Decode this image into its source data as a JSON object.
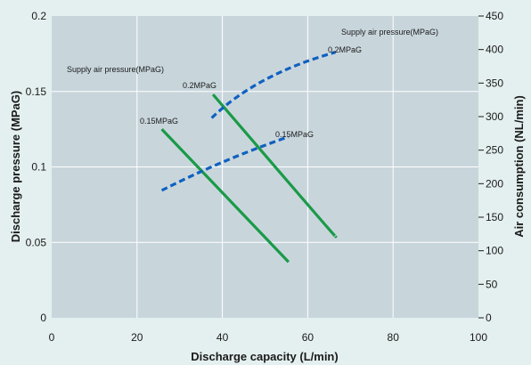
{
  "chart_data": {
    "type": "line",
    "xlabel": "Discharge capacity (L/min)",
    "ylabel": "Discharge pressure (MPaG)",
    "y2label": "Air consumption (NL/min)",
    "xlim": [
      0,
      100
    ],
    "ylim": [
      0,
      0.2
    ],
    "y2lim": [
      0,
      450
    ],
    "x_ticks": [
      "0",
      "20",
      "40",
      "60",
      "80",
      "100"
    ],
    "y_ticks": [
      "0",
      "0.05",
      "0.1",
      "0.15",
      "0.2"
    ],
    "y2_ticks": [
      "0",
      "50",
      "100",
      "150",
      "200",
      "250",
      "300",
      "350",
      "400",
      "450"
    ],
    "grid": true,
    "pressure_series": [
      {
        "label": "0.15MPaG",
        "color": "#1a9a48",
        "x": [
          25.8,
          55.5
        ],
        "y": [
          0.125,
          0.037
        ]
      },
      {
        "label": "0.2MPaG",
        "color": "#1a9a48",
        "x": [
          37.8,
          60.0,
          66.5
        ],
        "y": [
          0.148,
          0.075,
          0.054
        ]
      }
    ],
    "air_series": [
      {
        "label": "0.15MPaG",
        "color": "#1060c0",
        "x": [
          25.8,
          40,
          55.5
        ],
        "y": [
          190,
          232,
          270
        ]
      },
      {
        "label": "0.2MPaG",
        "color": "#1060c0",
        "x": [
          37.5,
          50,
          66.5
        ],
        "y": [
          298,
          355,
          396
        ]
      }
    ],
    "annotations": {
      "supply_left": "Supply air pressure(MPaG)",
      "supply_right": "Supply air pressure(MPaG)",
      "p015": "0.15MPaG",
      "p02": "0.2MPaG",
      "a015": "0.15MPaG",
      "a02": "0.2MPaG"
    }
  }
}
